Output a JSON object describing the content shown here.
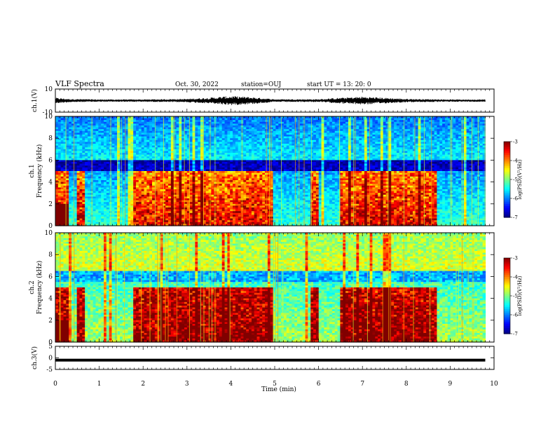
{
  "header": {
    "title": "VLF Spectra",
    "date": "Oct. 30, 2022",
    "station": "station=OUJ",
    "start_ut": "start  UT  =   13: 20: 0"
  },
  "chart_data": [
    {
      "type": "line",
      "panel": "ch1-waveform",
      "ylabel": "ch.1(V)",
      "ylim": [
        -10,
        10
      ],
      "y_ticks": [
        10,
        -10
      ],
      "xlim": [
        0,
        10
      ],
      "series": [
        {
          "values_note_free": true,
          "envelope": [
            {
              "x": 0.0,
              "amp": 2.5
            },
            {
              "x": 0.3,
              "amp": 1.5
            },
            {
              "x": 1.0,
              "amp": 1.0
            },
            {
              "x": 2.0,
              "amp": 1.0
            },
            {
              "x": 3.0,
              "amp": 1.5
            },
            {
              "x": 3.5,
              "amp": 2.5
            },
            {
              "x": 4.0,
              "amp": 4.0
            },
            {
              "x": 4.5,
              "amp": 3.0
            },
            {
              "x": 5.0,
              "amp": 1.2
            },
            {
              "x": 6.0,
              "amp": 1.2
            },
            {
              "x": 6.5,
              "amp": 2.5
            },
            {
              "x": 7.0,
              "amp": 3.5
            },
            {
              "x": 7.5,
              "amp": 2.5
            },
            {
              "x": 8.0,
              "amp": 1.5
            },
            {
              "x": 9.0,
              "amp": 1.0
            },
            {
              "x": 9.8,
              "amp": 1.0
            }
          ]
        }
      ]
    },
    {
      "type": "heatmap",
      "panel": "ch1-spectrogram",
      "ylabel_line1": "ch.1",
      "ylabel_line2": "Frequency  (kHz)",
      "ylim": [
        0,
        10
      ],
      "y_ticks": [
        0,
        2,
        4,
        6,
        8,
        10
      ],
      "xlim": [
        0,
        10
      ],
      "colorbar": {
        "label": "log(PSD)(V²/Hz)",
        "range": [
          -7,
          -3
        ],
        "ticks": [
          -3,
          -4,
          -5,
          -6,
          -7
        ]
      }
    },
    {
      "type": "heatmap",
      "panel": "ch2-spectrogram",
      "ylabel_line1": "ch.2",
      "ylabel_line2": "Frequency  (kHz)",
      "ylim": [
        0,
        10
      ],
      "y_ticks": [
        0,
        2,
        4,
        6,
        8,
        10
      ],
      "xlim": [
        0,
        10
      ],
      "colorbar": {
        "label": "log(PSD)(V²/Hz)",
        "range": [
          -7,
          -3
        ],
        "ticks": [
          -3,
          -4,
          -5,
          -6,
          -7
        ]
      }
    },
    {
      "type": "line",
      "panel": "ch3-trace",
      "ylabel": "ch.3(V)",
      "ylim": [
        -5,
        5
      ],
      "y_ticks": [
        5,
        0,
        -5
      ],
      "xlim": [
        0,
        10
      ],
      "series": [
        {
          "x": [
            0,
            9.8
          ],
          "y": [
            -1,
            -1
          ]
        }
      ]
    }
  ],
  "x_axis": {
    "label": "Time  (min)",
    "ticks": [
      0,
      1,
      2,
      3,
      4,
      5,
      6,
      7,
      8,
      9,
      10
    ],
    "data_end": 9.8
  }
}
